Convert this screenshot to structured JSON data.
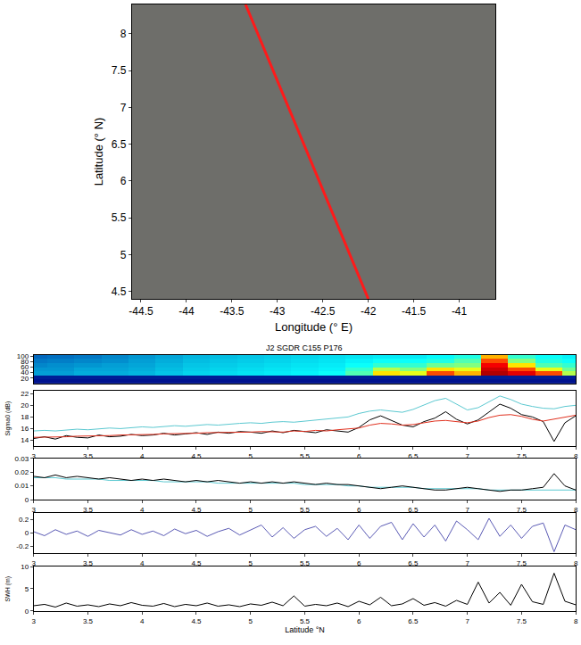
{
  "chart_data": [
    {
      "type": "line",
      "x": [
        -43.35,
        -42.0
      ],
      "values": [
        8.4,
        4.4
      ],
      "color": "#ff1a1a",
      "x_label": "Longitude (° E)",
      "y_label": "Latitude (° N)",
      "xlim": [
        -44.6,
        -40.6
      ],
      "xticks": [
        -44.5,
        -44,
        -43.5,
        -43,
        -42.5,
        -42,
        -41.5,
        -41
      ],
      "ylim": [
        4.4,
        8.4
      ],
      "yticks": [
        4.5,
        5,
        5.5,
        6,
        6.5,
        7,
        7.5,
        8
      ]
    },
    {
      "type": "heatmap",
      "title": "J2 SGDR C155 P176",
      "tick_labels": "y",
      "x": [
        3,
        3.25,
        3.5,
        3.75,
        4,
        4.25,
        4.5,
        4.75,
        5,
        5.25,
        5.5,
        5.75,
        6,
        6.25,
        6.5,
        6.75,
        7,
        7.25,
        7.5,
        7.75,
        8
      ],
      "y": [
        7,
        22,
        37,
        52,
        67,
        82,
        97
      ],
      "z": [
        [
          0.04,
          0.04,
          0.04,
          0.04,
          0.04,
          0.04,
          0.04,
          0.04,
          0.04,
          0.04,
          0.04,
          0.04,
          0.04,
          0.04,
          0.04,
          0.04,
          0.04,
          0.04,
          0.04,
          0.04,
          0.04
        ],
        [
          0.06,
          0.06,
          0.06,
          0.06,
          0.06,
          0.06,
          0.06,
          0.06,
          0.06,
          0.06,
          0.06,
          0.06,
          0.06,
          0.06,
          0.06,
          0.06,
          0.06,
          0.06,
          0.06,
          0.06,
          0.06
        ],
        [
          0.25,
          0.25,
          0.27,
          0.27,
          0.28,
          0.3,
          0.32,
          0.33,
          0.34,
          0.35,
          0.36,
          0.38,
          0.45,
          0.65,
          0.6,
          0.8,
          0.7,
          0.95,
          0.9,
          0.8,
          0.55
        ],
        [
          0.24,
          0.24,
          0.26,
          0.26,
          0.27,
          0.29,
          0.31,
          0.32,
          0.33,
          0.34,
          0.35,
          0.36,
          0.42,
          0.55,
          0.5,
          0.65,
          0.6,
          0.92,
          0.8,
          0.6,
          0.48
        ],
        [
          0.22,
          0.23,
          0.24,
          0.25,
          0.26,
          0.28,
          0.3,
          0.31,
          0.32,
          0.33,
          0.34,
          0.35,
          0.38,
          0.42,
          0.42,
          0.48,
          0.5,
          0.88,
          0.65,
          0.45,
          0.42
        ],
        [
          0.2,
          0.21,
          0.22,
          0.23,
          0.25,
          0.27,
          0.29,
          0.3,
          0.31,
          0.32,
          0.33,
          0.34,
          0.36,
          0.38,
          0.38,
          0.4,
          0.45,
          0.8,
          0.5,
          0.4,
          0.38
        ],
        [
          0.18,
          0.19,
          0.2,
          0.22,
          0.24,
          0.26,
          0.28,
          0.29,
          0.3,
          0.31,
          0.32,
          0.33,
          0.34,
          0.35,
          0.35,
          0.37,
          0.4,
          0.7,
          0.42,
          0.38,
          0.36
        ]
      ],
      "zlim": [
        0,
        1
      ],
      "xlim": [
        3,
        8
      ],
      "ylim": [
        0,
        104
      ],
      "yticks": [
        20,
        40,
        60,
        80,
        100
      ]
    },
    {
      "type": "line",
      "y_label": "Sigma0 (dB)",
      "x": [
        3,
        3.1,
        3.2,
        3.3,
        3.4,
        3.5,
        3.6,
        3.7,
        3.8,
        3.9,
        4,
        4.1,
        4.2,
        4.3,
        4.4,
        4.5,
        4.6,
        4.7,
        4.8,
        4.9,
        5,
        5.1,
        5.2,
        5.3,
        5.4,
        5.5,
        5.6,
        5.7,
        5.8,
        5.9,
        6,
        6.1,
        6.2,
        6.3,
        6.4,
        6.5,
        6.6,
        6.7,
        6.8,
        6.9,
        7,
        7.1,
        7.2,
        7.3,
        7.4,
        7.5,
        7.6,
        7.7,
        7.8,
        7.9,
        8
      ],
      "series": [
        {
          "color": "#5bc8d0",
          "values": [
            15.6,
            15.7,
            15.6,
            15.8,
            15.9,
            15.8,
            16.0,
            16.1,
            16.0,
            16.2,
            16.3,
            16.2,
            16.4,
            16.5,
            16.4,
            16.6,
            16.7,
            16.6,
            16.8,
            16.9,
            17.0,
            16.9,
            17.1,
            17.2,
            17.1,
            17.3,
            17.4,
            17.6,
            17.8,
            18.0,
            18.6,
            19.0,
            19.2,
            19.0,
            18.8,
            19.3,
            20.0,
            20.8,
            21.2,
            20.2,
            19.2,
            19.6,
            20.6,
            21.6,
            21.0,
            20.2,
            19.8,
            19.5,
            19.4,
            19.8,
            20.0
          ]
        },
        {
          "color": "#000000",
          "values": [
            14.3,
            14.6,
            14.2,
            14.8,
            14.5,
            14.4,
            14.9,
            14.6,
            14.7,
            15.0,
            14.8,
            14.9,
            15.2,
            14.9,
            15.1,
            15.3,
            15.0,
            15.4,
            15.2,
            15.5,
            15.4,
            15.2,
            15.6,
            15.3,
            15.7,
            15.5,
            15.3,
            15.8,
            15.6,
            15.4,
            16.2,
            17.5,
            18.2,
            17.4,
            16.6,
            16.3,
            17.2,
            17.8,
            18.9,
            17.6,
            16.8,
            17.5,
            18.8,
            20.2,
            19.5,
            18.4,
            18.0,
            17.2,
            13.8,
            17.0,
            18.2
          ]
        },
        {
          "color": "#e0301e",
          "values": [
            14.5,
            14.5,
            14.6,
            14.6,
            14.7,
            14.7,
            14.8,
            14.8,
            14.9,
            14.9,
            15.0,
            15.0,
            15.1,
            15.1,
            15.2,
            15.2,
            15.3,
            15.3,
            15.3,
            15.4,
            15.4,
            15.5,
            15.5,
            15.4,
            15.6,
            15.5,
            15.7,
            15.6,
            15.8,
            15.9,
            16.1,
            16.6,
            16.9,
            16.8,
            16.6,
            16.7,
            17.0,
            17.3,
            17.4,
            17.2,
            17.0,
            17.3,
            17.9,
            18.3,
            18.4,
            18.1,
            17.6,
            17.3,
            17.6,
            18.0,
            18.3
          ]
        }
      ],
      "xlim": [
        3,
        8
      ],
      "xticks": [
        3,
        3.5,
        4,
        4.5,
        5,
        5.5,
        6,
        6.5,
        7,
        7.5,
        8
      ],
      "ylim": [
        13,
        22.5
      ],
      "yticks": [
        14,
        16,
        18,
        20,
        22
      ]
    },
    {
      "type": "line",
      "x": [
        3,
        3.1,
        3.2,
        3.3,
        3.4,
        3.5,
        3.6,
        3.7,
        3.8,
        3.9,
        4,
        4.1,
        4.2,
        4.3,
        4.4,
        4.5,
        4.6,
        4.7,
        4.8,
        4.9,
        5,
        5.1,
        5.2,
        5.3,
        5.4,
        5.5,
        5.6,
        5.7,
        5.8,
        5.9,
        6,
        6.1,
        6.2,
        6.3,
        6.4,
        6.5,
        6.6,
        6.7,
        6.8,
        6.9,
        7,
        7.1,
        7.2,
        7.3,
        7.4,
        7.5,
        7.6,
        7.7,
        7.8,
        7.9,
        8
      ],
      "series": [
        {
          "color": "#5bc8d0",
          "values": [
            0.016,
            0.016,
            0.016,
            0.015,
            0.015,
            0.015,
            0.015,
            0.014,
            0.014,
            0.014,
            0.014,
            0.014,
            0.013,
            0.013,
            0.013,
            0.013,
            0.013,
            0.012,
            0.012,
            0.012,
            0.012,
            0.012,
            0.012,
            0.012,
            0.012,
            0.011,
            0.011,
            0.011,
            0.011,
            0.01,
            0.01,
            0.009,
            0.009,
            0.009,
            0.009,
            0.009,
            0.008,
            0.008,
            0.008,
            0.008,
            0.008,
            0.008,
            0.007,
            0.007,
            0.007,
            0.007,
            0.007,
            0.007,
            0.007,
            0.007,
            0.007
          ]
        },
        {
          "color": "#000000",
          "values": [
            0.017,
            0.016,
            0.018,
            0.016,
            0.017,
            0.016,
            0.015,
            0.016,
            0.015,
            0.014,
            0.015,
            0.014,
            0.015,
            0.014,
            0.013,
            0.014,
            0.013,
            0.014,
            0.013,
            0.012,
            0.013,
            0.012,
            0.013,
            0.012,
            0.013,
            0.012,
            0.011,
            0.012,
            0.011,
            0.011,
            0.01,
            0.009,
            0.008,
            0.009,
            0.01,
            0.009,
            0.008,
            0.007,
            0.007,
            0.008,
            0.009,
            0.008,
            0.007,
            0.006,
            0.007,
            0.007,
            0.008,
            0.009,
            0.019,
            0.01,
            0.007
          ]
        }
      ],
      "xlim": [
        3,
        8
      ],
      "xticks": [
        3,
        3.5,
        4,
        4.5,
        5,
        5.5,
        6,
        6.5,
        7,
        7.5,
        8
      ],
      "ylim": [
        0,
        0.03
      ],
      "yticks": [
        0,
        0.01,
        0.02,
        0.03
      ]
    },
    {
      "type": "line",
      "x": [
        3,
        3.1,
        3.2,
        3.3,
        3.4,
        3.5,
        3.6,
        3.7,
        3.8,
        3.9,
        4,
        4.1,
        4.2,
        4.3,
        4.4,
        4.5,
        4.6,
        4.7,
        4.8,
        4.9,
        5,
        5.1,
        5.2,
        5.3,
        5.4,
        5.5,
        5.6,
        5.7,
        5.8,
        5.9,
        6,
        6.1,
        6.2,
        6.3,
        6.4,
        6.5,
        6.6,
        6.7,
        6.8,
        6.9,
        7,
        7.1,
        7.2,
        7.3,
        7.4,
        7.5,
        7.6,
        7.7,
        7.8,
        7.9,
        8
      ],
      "series": [
        {
          "color": "#5a5ab4",
          "values": [
            0.02,
            -0.04,
            0.05,
            -0.02,
            0.03,
            -0.05,
            0.04,
            0.01,
            -0.03,
            0.05,
            -0.02,
            0.03,
            -0.04,
            0.06,
            -0.01,
            0.04,
            -0.05,
            0.02,
            0.07,
            -0.03,
            0.05,
            0.12,
            -0.06,
            0.08,
            -0.08,
            0.05,
            0.1,
            -0.05,
            0.07,
            -0.1,
            0.12,
            -0.08,
            0.1,
            0.16,
            -0.1,
            0.14,
            -0.06,
            0.12,
            -0.12,
            0.18,
            0.05,
            -0.1,
            0.22,
            -0.05,
            0.12,
            -0.08,
            0.1,
            0.15,
            -0.28,
            0.12,
            0.05
          ]
        }
      ],
      "xlim": [
        3,
        8
      ],
      "xticks": [
        3,
        3.5,
        4,
        4.5,
        5,
        5.5,
        6,
        6.5,
        7,
        7.5,
        8
      ],
      "ylim": [
        -0.3,
        0.3
      ],
      "yticks": [
        -0.2,
        0,
        0.2
      ]
    },
    {
      "type": "line",
      "y_label": "SWH (m)",
      "x_label": "Latitude °N",
      "x": [
        3,
        3.1,
        3.2,
        3.3,
        3.4,
        3.5,
        3.6,
        3.7,
        3.8,
        3.9,
        4,
        4.1,
        4.2,
        4.3,
        4.4,
        4.5,
        4.6,
        4.7,
        4.8,
        4.9,
        5,
        5.1,
        5.2,
        5.3,
        5.4,
        5.5,
        5.6,
        5.7,
        5.8,
        5.9,
        6,
        6.1,
        6.2,
        6.3,
        6.4,
        6.5,
        6.6,
        6.7,
        6.8,
        6.9,
        7,
        7.1,
        7.2,
        7.3,
        7.4,
        7.5,
        7.6,
        7.7,
        7.8,
        7.9,
        8
      ],
      "series": [
        {
          "color": "#000000",
          "values": [
            1.2,
            1.5,
            0.9,
            1.8,
            1.1,
            1.4,
            1.0,
            1.6,
            1.2,
            1.9,
            1.3,
            1.1,
            1.7,
            1.0,
            1.5,
            1.2,
            1.8,
            1.1,
            1.4,
            1.0,
            1.6,
            1.3,
            2.0,
            1.2,
            3.4,
            1.1,
            1.5,
            1.2,
            1.8,
            1.0,
            2.2,
            1.4,
            3.1,
            1.2,
            1.6,
            2.8,
            1.3,
            1.9,
            1.1,
            2.4,
            1.5,
            6.5,
            1.8,
            4.2,
            1.3,
            6.0,
            2.1,
            1.5,
            8.5,
            2.2,
            1.4
          ]
        }
      ],
      "xlim": [
        3,
        8
      ],
      "xticks": [
        3,
        3.5,
        4,
        4.5,
        5,
        5.5,
        6,
        6.5,
        7,
        7.5,
        8
      ],
      "ylim": [
        0,
        10
      ],
      "yticks": [
        0,
        5,
        10
      ]
    }
  ]
}
